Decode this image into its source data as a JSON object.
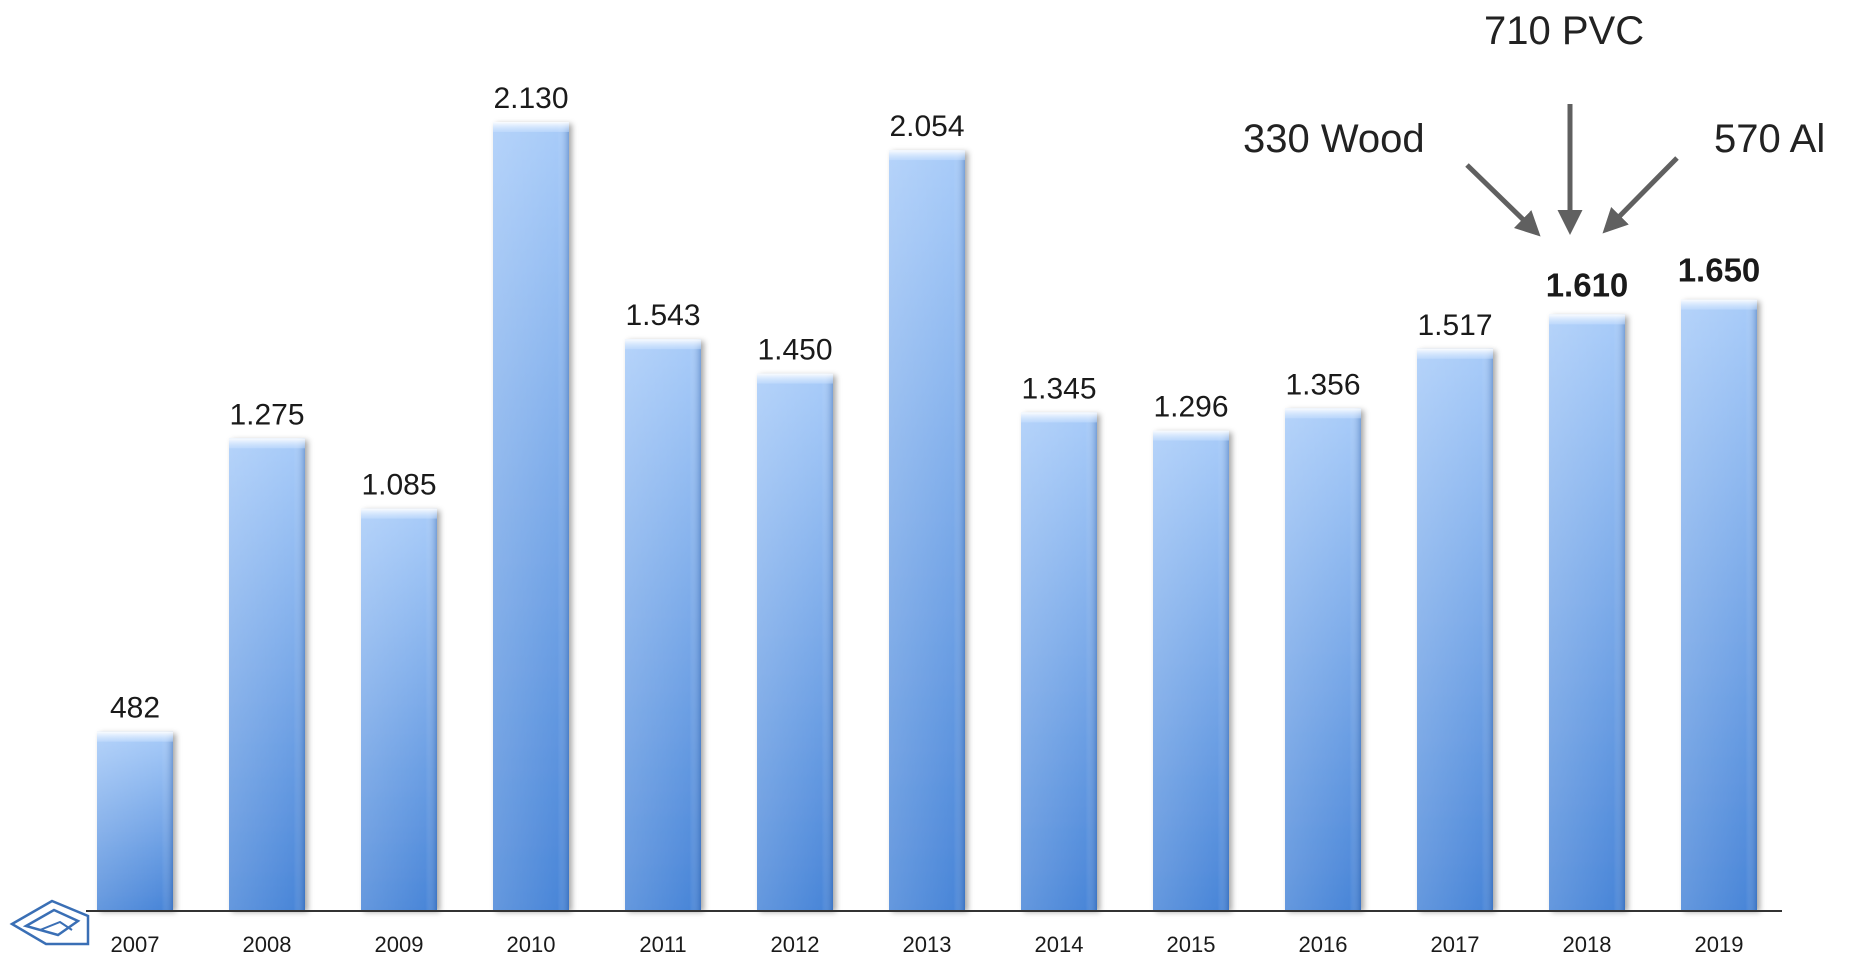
{
  "chart_data": {
    "type": "bar",
    "categories": [
      "2007",
      "2008",
      "2009",
      "2010",
      "2011",
      "2012",
      "2013",
      "2014",
      "2015",
      "2016",
      "2017",
      "2018",
      "2019"
    ],
    "values": [
      482,
      1275,
      1085,
      2130,
      1543,
      1450,
      2054,
      1345,
      1296,
      1356,
      1517,
      1610,
      1650
    ],
    "value_labels": [
      "482",
      "1.275",
      "1.085",
      "2.130",
      "1.543",
      "1.450",
      "2.054",
      "1.345",
      "1.296",
      "1.356",
      "1.517",
      "1.610",
      "1.650"
    ],
    "bold_value_labels": [
      "2018",
      "2019"
    ],
    "title": "",
    "xlabel": "",
    "ylabel": "",
    "ylim": [
      0,
      2130
    ],
    "grid": false,
    "bar_color": "#5b95e0",
    "bar_color_light": "#a9ccf9",
    "annotations": [
      {
        "text": "330 Wood",
        "points_to": "2018"
      },
      {
        "text": "710 PVC",
        "points_to": "2018"
      },
      {
        "text": "570 Al",
        "points_to": "2018"
      }
    ],
    "arrow_color": "#606060"
  },
  "logo": {
    "name": "company-logo-icon"
  }
}
